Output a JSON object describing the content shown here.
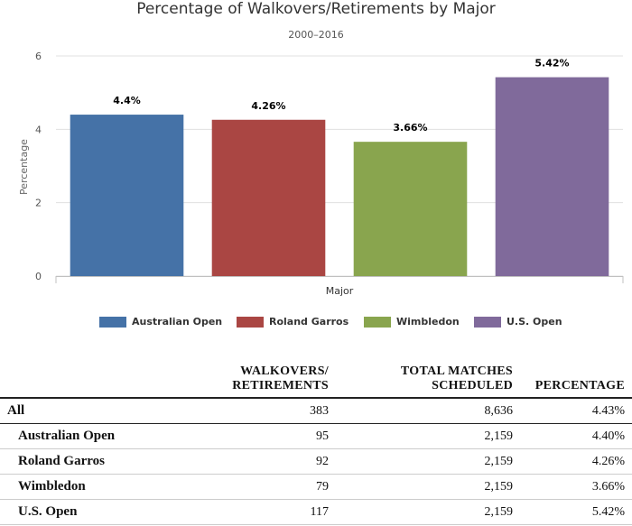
{
  "chart_data": {
    "type": "bar",
    "title": "Percentage of Walkovers/Retirements by Major",
    "subtitle": "2000–2016",
    "xlabel": "Major",
    "ylabel": "Percentage",
    "categories": [
      "Australian Open",
      "Roland Garros",
      "Wimbledon",
      "U.S. Open"
    ],
    "values": [
      4.4,
      4.26,
      3.66,
      5.42
    ],
    "data_labels": [
      "4.4%",
      "4.26%",
      "3.66%",
      "5.42%"
    ],
    "colors": [
      "#4572a7",
      "#aa4643",
      "#89a54e",
      "#806a9b"
    ],
    "ylim": [
      0,
      6
    ],
    "yticks": [
      "0",
      "2",
      "4",
      "6"
    ],
    "grid": true,
    "legend_position": "bottom"
  },
  "table": {
    "headers": [
      {
        "line1": "",
        "line2": ""
      },
      {
        "line1": "Walkovers/",
        "line2": "Retirements"
      },
      {
        "line1": "Total matches",
        "line2": "scheduled"
      },
      {
        "line1": "",
        "line2": "Percentage"
      }
    ],
    "rows": [
      {
        "name": "All",
        "walkovers": "383",
        "total": "8,636",
        "pct": "4.43%"
      },
      {
        "name": "Australian Open",
        "walkovers": "95",
        "total": "2,159",
        "pct": "4.40%"
      },
      {
        "name": "Roland Garros",
        "walkovers": "92",
        "total": "2,159",
        "pct": "4.26%"
      },
      {
        "name": "Wimbledon",
        "walkovers": "79",
        "total": "2,159",
        "pct": "3.66%"
      },
      {
        "name": "U.S. Open",
        "walkovers": "117",
        "total": "2,159",
        "pct": "5.42%"
      }
    ]
  }
}
